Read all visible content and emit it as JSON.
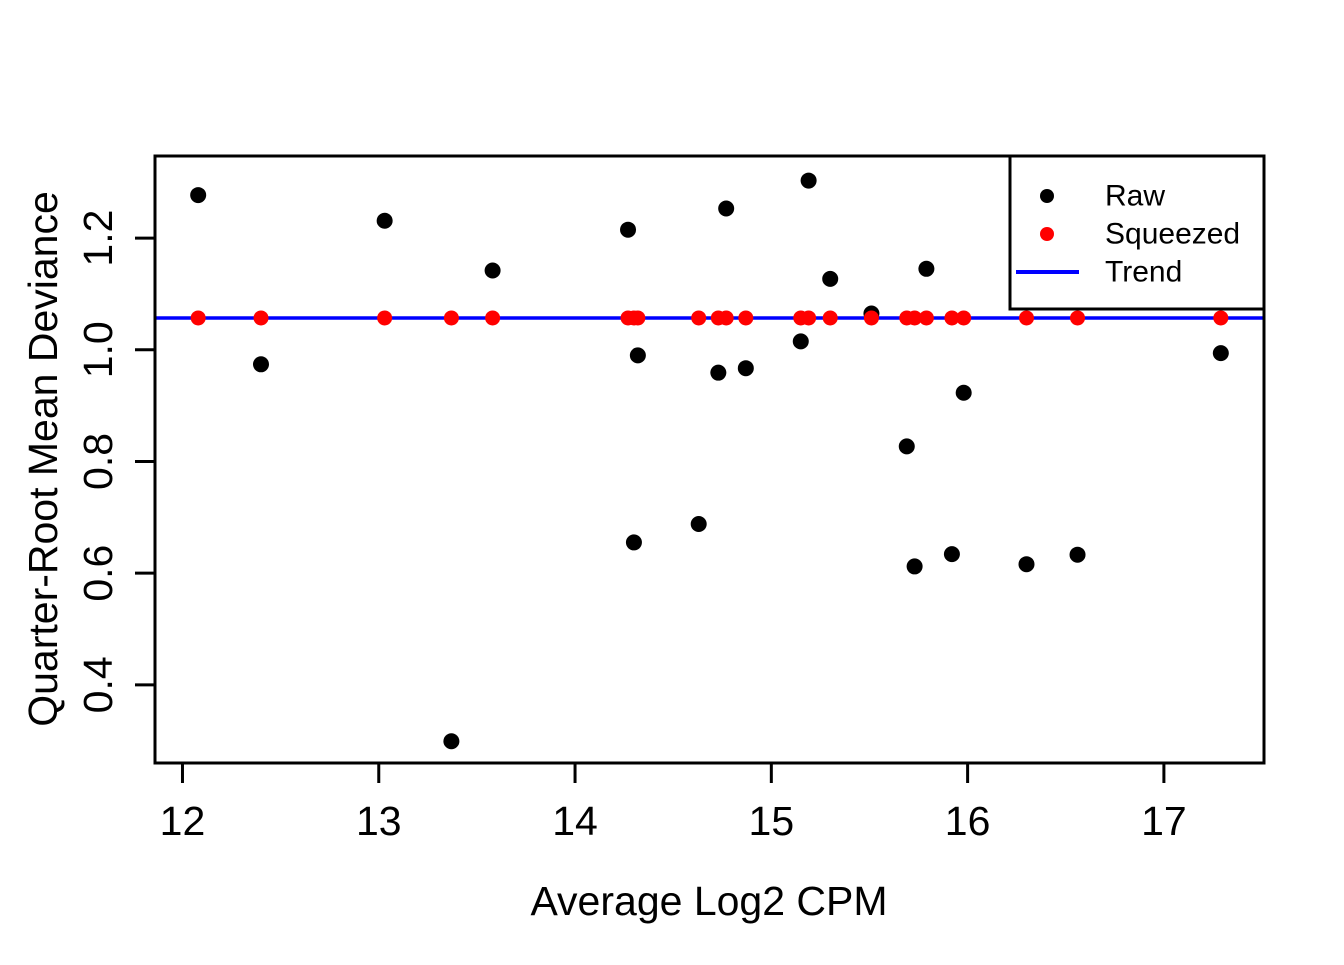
{
  "chart_data": {
    "type": "scatter",
    "xlabel": "Average Log2 CPM",
    "ylabel": "Quarter-Root Mean Deviance",
    "xlim": [
      11.86,
      17.51
    ],
    "ylim": [
      0.26,
      1.347
    ],
    "xticks": [
      12,
      13,
      14,
      15,
      16,
      17
    ],
    "xtick_labels": [
      "12",
      "13",
      "14",
      "15",
      "16",
      "17"
    ],
    "yticks": [
      0.4,
      0.6,
      0.8,
      1.0,
      1.2
    ],
    "ytick_labels": [
      "0.4",
      "0.6",
      "0.8",
      "1.0",
      "1.2"
    ],
    "grid": false,
    "background_color": "#ffffff",
    "border_color": "#000000",
    "series": [
      {
        "name": "Raw",
        "type": "scatter",
        "color": "#000000",
        "marker": "filled-circle",
        "marker_radius": 8,
        "x": [
          12.08,
          12.4,
          13.03,
          13.37,
          13.58,
          14.27,
          14.3,
          14.32,
          14.63,
          14.73,
          14.77,
          14.87,
          15.15,
          15.19,
          15.3,
          15.51,
          15.69,
          15.73,
          15.79,
          15.92,
          15.98,
          16.3,
          16.56,
          17.29
        ],
        "y": [
          1.277,
          0.974,
          1.231,
          0.299,
          1.142,
          1.215,
          0.655,
          0.99,
          0.688,
          0.959,
          1.253,
          0.967,
          1.015,
          1.303,
          1.127,
          1.065,
          0.827,
          0.612,
          1.145,
          0.634,
          0.923,
          0.616,
          0.633,
          0.994
        ]
      },
      {
        "name": "Squeezed",
        "type": "scatter",
        "color": "#ff0000",
        "marker": "filled-circle",
        "marker_radius": 7.5,
        "x": [
          12.08,
          12.4,
          13.03,
          13.37,
          13.58,
          14.27,
          14.3,
          14.32,
          14.63,
          14.73,
          14.77,
          14.87,
          15.15,
          15.19,
          15.3,
          15.51,
          15.69,
          15.73,
          15.79,
          15.92,
          15.98,
          16.3,
          16.56,
          17.29
        ],
        "y": [
          1.057,
          1.057,
          1.057,
          1.057,
          1.057,
          1.057,
          1.057,
          1.057,
          1.057,
          1.057,
          1.057,
          1.057,
          1.057,
          1.057,
          1.057,
          1.057,
          1.057,
          1.057,
          1.057,
          1.057,
          1.057,
          1.057,
          1.057,
          1.057
        ]
      },
      {
        "name": "Trend",
        "type": "hline",
        "color": "#0000ff",
        "line_width": 3.5,
        "y_value": 1.057
      }
    ],
    "legend": {
      "position": "top-right",
      "entries": [
        {
          "label": "Raw",
          "symbol": "dot",
          "color": "#000000"
        },
        {
          "label": "Squeezed",
          "symbol": "dot",
          "color": "#ff0000"
        },
        {
          "label": "Trend",
          "symbol": "line",
          "color": "#0000ff"
        }
      ]
    }
  }
}
